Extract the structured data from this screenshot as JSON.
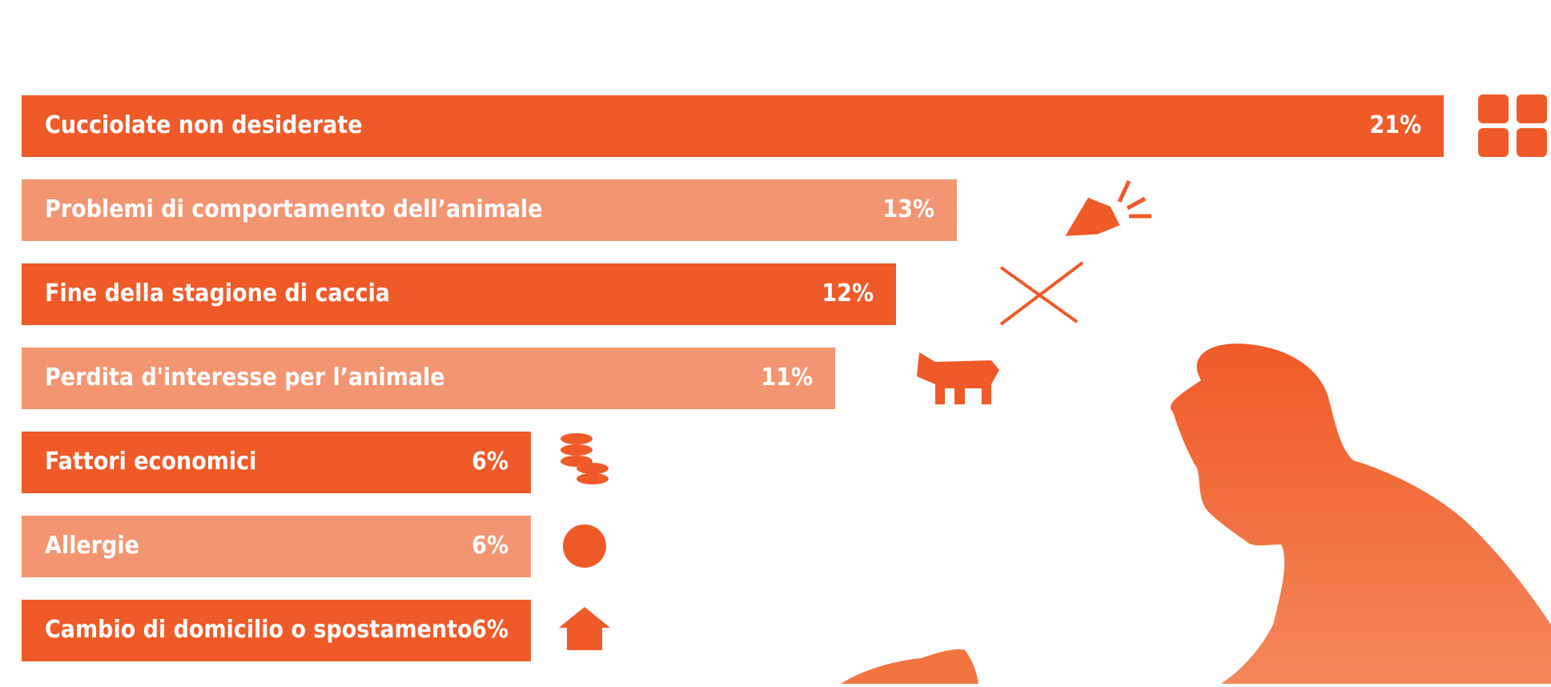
{
  "chart_data": {
    "type": "bar",
    "orientation": "horizontal",
    "categories": [
      "Cucciolate non desiderate",
      "Problemi di comportamento dell’animale",
      "Fine della stagione di caccia",
      "Perdita d'interesse per l’animale",
      "Fattori economici",
      "Allergie",
      "Cambio di domicilio o spostamento"
    ],
    "values": [
      21,
      13,
      12,
      11,
      6,
      6,
      6
    ],
    "value_labels": [
      "21%",
      "13%",
      "12%",
      "11%",
      "6%",
      "6%",
      "6%"
    ],
    "colors": [
      "#f05a28",
      "#f49572"
    ]
  }
}
